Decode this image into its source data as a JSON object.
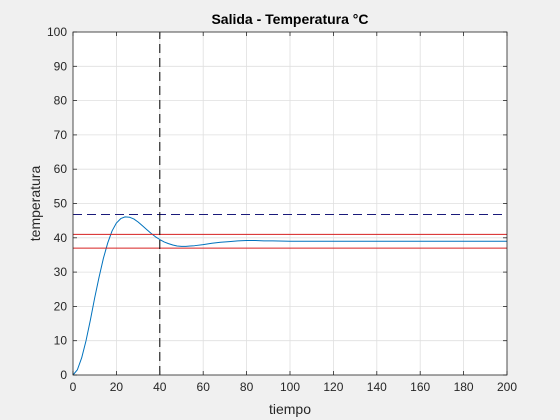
{
  "chart_data": {
    "type": "line",
    "title": "Salida - Temperatura °C",
    "xlabel": "tiempo",
    "ylabel": "temperatura",
    "xlim": [
      0,
      200
    ],
    "ylim": [
      0,
      100
    ],
    "xticks": [
      0,
      20,
      40,
      60,
      80,
      100,
      120,
      140,
      160,
      180,
      200
    ],
    "yticks": [
      0,
      10,
      20,
      30,
      40,
      50,
      60,
      70,
      80,
      90,
      100
    ],
    "grid": true,
    "series": [
      {
        "style": "solid",
        "color": "#0072bd",
        "points": [
          [
            0,
            0
          ],
          [
            2,
            1.5
          ],
          [
            4,
            5
          ],
          [
            6,
            10
          ],
          [
            8,
            16
          ],
          [
            10,
            22.5
          ],
          [
            12,
            28.5
          ],
          [
            14,
            34
          ],
          [
            16,
            38.5
          ],
          [
            18,
            42
          ],
          [
            20,
            44.3
          ],
          [
            22,
            45.6
          ],
          [
            24,
            46.1
          ],
          [
            26,
            46.0
          ],
          [
            28,
            45.5
          ],
          [
            30,
            44.6
          ],
          [
            32,
            43.5
          ],
          [
            34,
            42.4
          ],
          [
            36,
            41.3
          ],
          [
            38,
            40.3
          ],
          [
            40,
            39.5
          ],
          [
            42,
            38.8
          ],
          [
            44,
            38.3
          ],
          [
            46,
            37.9
          ],
          [
            48,
            37.6
          ],
          [
            50,
            37.5
          ],
          [
            52,
            37.5
          ],
          [
            54,
            37.6
          ],
          [
            56,
            37.7
          ],
          [
            60,
            38.0
          ],
          [
            64,
            38.4
          ],
          [
            68,
            38.7
          ],
          [
            72,
            38.9
          ],
          [
            76,
            39.1
          ],
          [
            80,
            39.2
          ],
          [
            84,
            39.2
          ],
          [
            88,
            39.1
          ],
          [
            92,
            39.1
          ],
          [
            100,
            39.0
          ],
          [
            120,
            39.0
          ],
          [
            140,
            39.0
          ],
          [
            160,
            39.0
          ],
          [
            180,
            39.0
          ],
          [
            200,
            39.0
          ]
        ]
      },
      {
        "style": "dashed",
        "color": "#1a1a7a",
        "points": [
          [
            0,
            46.8
          ],
          [
            200,
            46.8
          ]
        ]
      },
      {
        "style": "solid",
        "color": "#d62020",
        "points": [
          [
            0,
            41
          ],
          [
            200,
            41
          ]
        ]
      },
      {
        "style": "solid",
        "color": "#d62020",
        "points": [
          [
            0,
            37
          ],
          [
            200,
            37
          ]
        ]
      },
      {
        "style": "dashed",
        "color": "#000000",
        "points": [
          [
            40,
            0
          ],
          [
            40,
            100
          ]
        ]
      }
    ]
  }
}
